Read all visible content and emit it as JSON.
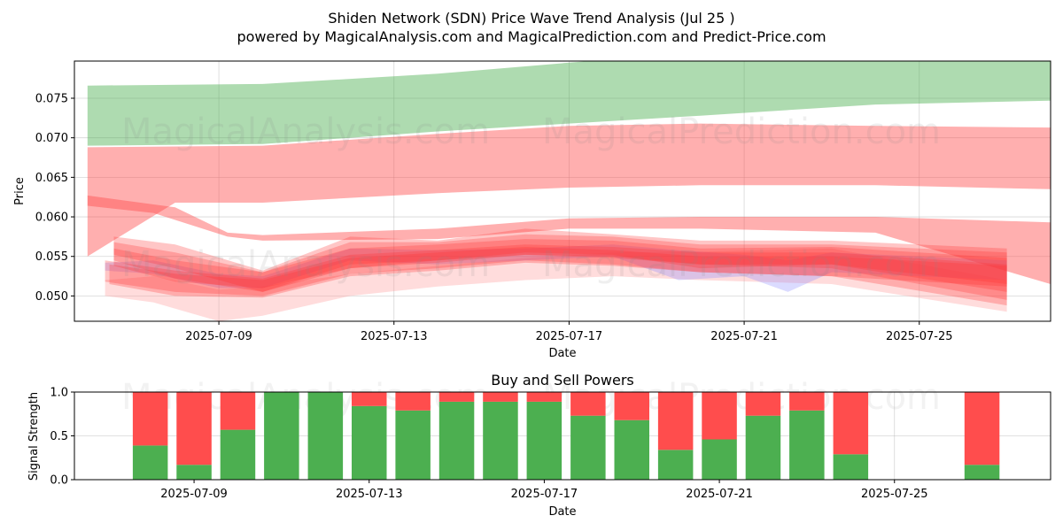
{
  "figure": {
    "title_line1": "Shiden Network (SDN) Price Wave Trend Analysis (Jul 25 )",
    "title_line2": "powered by MagicalAnalysis.com and MagicalPrediction.com and Predict-Price.com",
    "watermark_left": "MagicalAnalysis.com",
    "watermark_right": "MagicalPrediction.com"
  },
  "chart_data": [
    {
      "type": "area",
      "title": "",
      "xlabel": "Date",
      "ylabel": "Price",
      "x_start": "2025-07-06",
      "xlim": [
        "2025-07-05.7",
        "2025-07-28.0"
      ],
      "ylim": [
        0.0468,
        0.0797
      ],
      "x_ticks": [
        "2025-07-09",
        "2025-07-13",
        "2025-07-17",
        "2025-07-21",
        "2025-07-25"
      ],
      "y_ticks": [
        0.05,
        0.055,
        0.06,
        0.065,
        0.07,
        0.075
      ],
      "grid": true,
      "bands": [
        {
          "color": "#4caf50",
          "opacity": 0.45,
          "upper": [
            [
              6,
              0.0766
            ],
            [
              10,
              0.0768
            ],
            [
              14,
              0.0781
            ],
            [
              17,
              0.0795
            ],
            [
              20,
              0.0808
            ],
            [
              24,
              0.082
            ],
            [
              28,
              0.0825
            ]
          ],
          "lower": [
            [
              6,
              0.069
            ],
            [
              10,
              0.0692
            ],
            [
              14,
              0.0708
            ],
            [
              17,
              0.0718
            ],
            [
              20,
              0.0728
            ],
            [
              24,
              0.0742
            ],
            [
              28,
              0.0747
            ]
          ]
        },
        {
          "color": "#ff4d4d",
          "opacity": 0.45,
          "upper": [
            [
              6,
              0.0688
            ],
            [
              10,
              0.069
            ],
            [
              14,
              0.0705
            ],
            [
              17,
              0.0715
            ],
            [
              20,
              0.0718
            ],
            [
              24,
              0.0715
            ],
            [
              28,
              0.0713
            ]
          ],
          "lower": [
            [
              6,
              0.055
            ],
            [
              8,
              0.0618
            ],
            [
              10,
              0.0618
            ],
            [
              14,
              0.063
            ],
            [
              17,
              0.0637
            ],
            [
              20,
              0.064
            ],
            [
              24,
              0.064
            ],
            [
              28,
              0.0635
            ]
          ]
        },
        {
          "color": "#ff4d4d",
          "opacity": 0.45,
          "upper": [
            [
              6,
              0.0627
            ],
            [
              8,
              0.0612
            ],
            [
              9.2,
              0.058
            ],
            [
              10,
              0.0577
            ],
            [
              14,
              0.0585
            ],
            [
              17,
              0.0598
            ],
            [
              20,
              0.06
            ],
            [
              24,
              0.06
            ],
            [
              28,
              0.0593
            ]
          ],
          "lower": [
            [
              6,
              0.0614
            ],
            [
              7.5,
              0.0605
            ],
            [
              9.2,
              0.0575
            ],
            [
              10,
              0.057
            ],
            [
              14,
              0.0572
            ],
            [
              17,
              0.0585
            ],
            [
              20,
              0.0585
            ],
            [
              24,
              0.058
            ],
            [
              28,
              0.0515
            ]
          ]
        },
        {
          "color": "#ff9a9a",
          "opacity": 0.35,
          "upper": [
            [
              6.4,
              0.052
            ],
            [
              7.5,
              0.0525
            ],
            [
              9,
              0.0508
            ],
            [
              10,
              0.0512
            ],
            [
              12,
              0.0528
            ],
            [
              14,
              0.0538
            ],
            [
              16,
              0.0548
            ],
            [
              18,
              0.0555
            ],
            [
              20,
              0.0556
            ],
            [
              23,
              0.056
            ],
            [
              27,
              0.052
            ]
          ],
          "lower": [
            [
              6.4,
              0.05
            ],
            [
              7.5,
              0.0492
            ],
            [
              9,
              0.0468
            ],
            [
              10,
              0.0475
            ],
            [
              12,
              0.05
            ],
            [
              14,
              0.0512
            ],
            [
              16,
              0.052
            ],
            [
              18,
              0.0525
            ],
            [
              20,
              0.052
            ],
            [
              23,
              0.0515
            ],
            [
              27,
              0.048
            ]
          ]
        },
        {
          "color": "#8888ff",
          "opacity": 0.3,
          "upper": [
            [
              6.4,
              0.0542
            ],
            [
              7.5,
              0.0545
            ],
            [
              9,
              0.0528
            ],
            [
              10,
              0.0525
            ],
            [
              12,
              0.056
            ],
            [
              14,
              0.0558
            ],
            [
              16,
              0.056
            ],
            [
              18,
              0.0565
            ],
            [
              19.5,
              0.0558
            ],
            [
              21,
              0.0552
            ],
            [
              22,
              0.0545
            ],
            [
              23,
              0.0555
            ],
            [
              27,
              0.0545
            ]
          ],
          "lower": [
            [
              6.4,
              0.0532
            ],
            [
              7.5,
              0.0528
            ],
            [
              9,
              0.051
            ],
            [
              10,
              0.051
            ],
            [
              12,
              0.0545
            ],
            [
              14,
              0.054
            ],
            [
              16,
              0.0545
            ],
            [
              18,
              0.055
            ],
            [
              19.5,
              0.052
            ],
            [
              21,
              0.0525
            ],
            [
              22,
              0.0505
            ],
            [
              23,
              0.053
            ],
            [
              27,
              0.052
            ]
          ]
        },
        {
          "color": "#ff3333",
          "opacity": 0.28,
          "upper": [
            [
              6.6,
              0.0575
            ],
            [
              8,
              0.0565
            ],
            [
              10,
              0.0532
            ],
            [
              12,
              0.0575
            ],
            [
              14,
              0.057
            ],
            [
              16,
              0.0585
            ],
            [
              18,
              0.0578
            ],
            [
              20,
              0.057
            ],
            [
              23,
              0.057
            ],
            [
              27,
              0.056
            ]
          ],
          "lower": [
            [
              6.6,
              0.0552
            ],
            [
              8,
              0.0535
            ],
            [
              10,
              0.0505
            ],
            [
              12,
              0.054
            ],
            [
              14,
              0.0545
            ],
            [
              16,
              0.0555
            ],
            [
              18,
              0.0552
            ],
            [
              20,
              0.0535
            ],
            [
              23,
              0.054
            ],
            [
              27,
              0.0515
            ]
          ]
        },
        {
          "color": "#ff3333",
          "opacity": 0.28,
          "upper": [
            [
              6.6,
              0.0568
            ],
            [
              8,
              0.0555
            ],
            [
              10,
              0.053
            ],
            [
              12,
              0.0568
            ],
            [
              14,
              0.0568
            ],
            [
              16,
              0.0578
            ],
            [
              18,
              0.0575
            ],
            [
              20,
              0.0565
            ],
            [
              23,
              0.0565
            ],
            [
              27,
              0.0555
            ]
          ],
          "lower": [
            [
              6.6,
              0.0545
            ],
            [
              8,
              0.0522
            ],
            [
              10,
              0.0505
            ],
            [
              12,
              0.0535
            ],
            [
              14,
              0.0542
            ],
            [
              16,
              0.0552
            ],
            [
              18,
              0.0548
            ],
            [
              20,
              0.054
            ],
            [
              23,
              0.054
            ],
            [
              27,
              0.0505
            ]
          ]
        },
        {
          "color": "#ff3333",
          "opacity": 0.28,
          "upper": [
            [
              6.6,
              0.056
            ],
            [
              8,
              0.0545
            ],
            [
              10,
              0.053
            ],
            [
              12,
              0.056
            ],
            [
              14,
              0.0565
            ],
            [
              16,
              0.0572
            ],
            [
              18,
              0.057
            ],
            [
              20,
              0.056
            ],
            [
              23,
              0.0562
            ],
            [
              27,
              0.0548
            ]
          ],
          "lower": [
            [
              6.6,
              0.0538
            ],
            [
              8,
              0.0518
            ],
            [
              10,
              0.051
            ],
            [
              12,
              0.0535
            ],
            [
              14,
              0.0545
            ],
            [
              16,
              0.0552
            ],
            [
              18,
              0.055
            ],
            [
              20,
              0.054
            ],
            [
              23,
              0.0535
            ],
            [
              27,
              0.0495
            ]
          ]
        },
        {
          "color": "#ff3333",
          "opacity": 0.28,
          "upper": [
            [
              6.4,
              0.0545
            ],
            [
              8,
              0.0532
            ],
            [
              10,
              0.0522
            ],
            [
              12,
              0.0552
            ],
            [
              14,
              0.0558
            ],
            [
              16,
              0.0565
            ],
            [
              18,
              0.0562
            ],
            [
              20,
              0.0555
            ],
            [
              23,
              0.0555
            ],
            [
              27,
              0.054
            ]
          ],
          "lower": [
            [
              6.4,
              0.0518
            ],
            [
              8,
              0.0505
            ],
            [
              10,
              0.05
            ],
            [
              12,
              0.0528
            ],
            [
              14,
              0.0535
            ],
            [
              16,
              0.0545
            ],
            [
              18,
              0.054
            ],
            [
              20,
              0.053
            ],
            [
              23,
              0.0525
            ],
            [
              27,
              0.0488
            ]
          ]
        },
        {
          "color": "#ff3333",
          "opacity": 0.28,
          "upper": [
            [
              6.5,
              0.054
            ],
            [
              8,
              0.0528
            ],
            [
              10,
              0.052
            ],
            [
              12,
              0.0548
            ],
            [
              14,
              0.0555
            ],
            [
              16,
              0.0562
            ],
            [
              18,
              0.0558
            ],
            [
              20,
              0.055
            ],
            [
              23,
              0.055
            ],
            [
              27,
              0.0538
            ]
          ],
          "lower": [
            [
              6.5,
              0.0515
            ],
            [
              8,
              0.05
            ],
            [
              10,
              0.0498
            ],
            [
              12,
              0.0525
            ],
            [
              14,
              0.0532
            ],
            [
              16,
              0.0542
            ],
            [
              18,
              0.0538
            ],
            [
              20,
              0.053
            ],
            [
              23,
              0.0525
            ],
            [
              27,
              0.0512
            ]
          ]
        }
      ]
    },
    {
      "type": "bar",
      "title": "Buy and Sell Powers",
      "xlabel": "Date",
      "ylabel": "Signal Strength",
      "ylim": [
        0,
        1
      ],
      "y_ticks": [
        "0.0",
        "0.5",
        "1.0"
      ],
      "x_ticks": [
        "2025-07-09",
        "2025-07-13",
        "2025-07-17",
        "2025-07-21",
        "2025-07-25"
      ],
      "grid": true,
      "series": [
        {
          "name": "Buy",
          "color": "#4caf50"
        },
        {
          "name": "Sell",
          "color": "#ff4d4d"
        }
      ],
      "dates": [
        "2025-07-08",
        "2025-07-09",
        "2025-07-10",
        "2025-07-11",
        "2025-07-12",
        "2025-07-13",
        "2025-07-14",
        "2025-07-15",
        "2025-07-16",
        "2025-07-17",
        "2025-07-18",
        "2025-07-19",
        "2025-07-20",
        "2025-07-21",
        "2025-07-22",
        "2025-07-23",
        "2025-07-24",
        "2025-07-27"
      ],
      "buy": [
        0.39,
        0.17,
        0.57,
        1.0,
        1.0,
        0.84,
        0.79,
        0.89,
        0.89,
        0.89,
        0.73,
        0.68,
        0.34,
        0.46,
        0.73,
        0.79,
        0.29,
        0.17
      ]
    }
  ]
}
